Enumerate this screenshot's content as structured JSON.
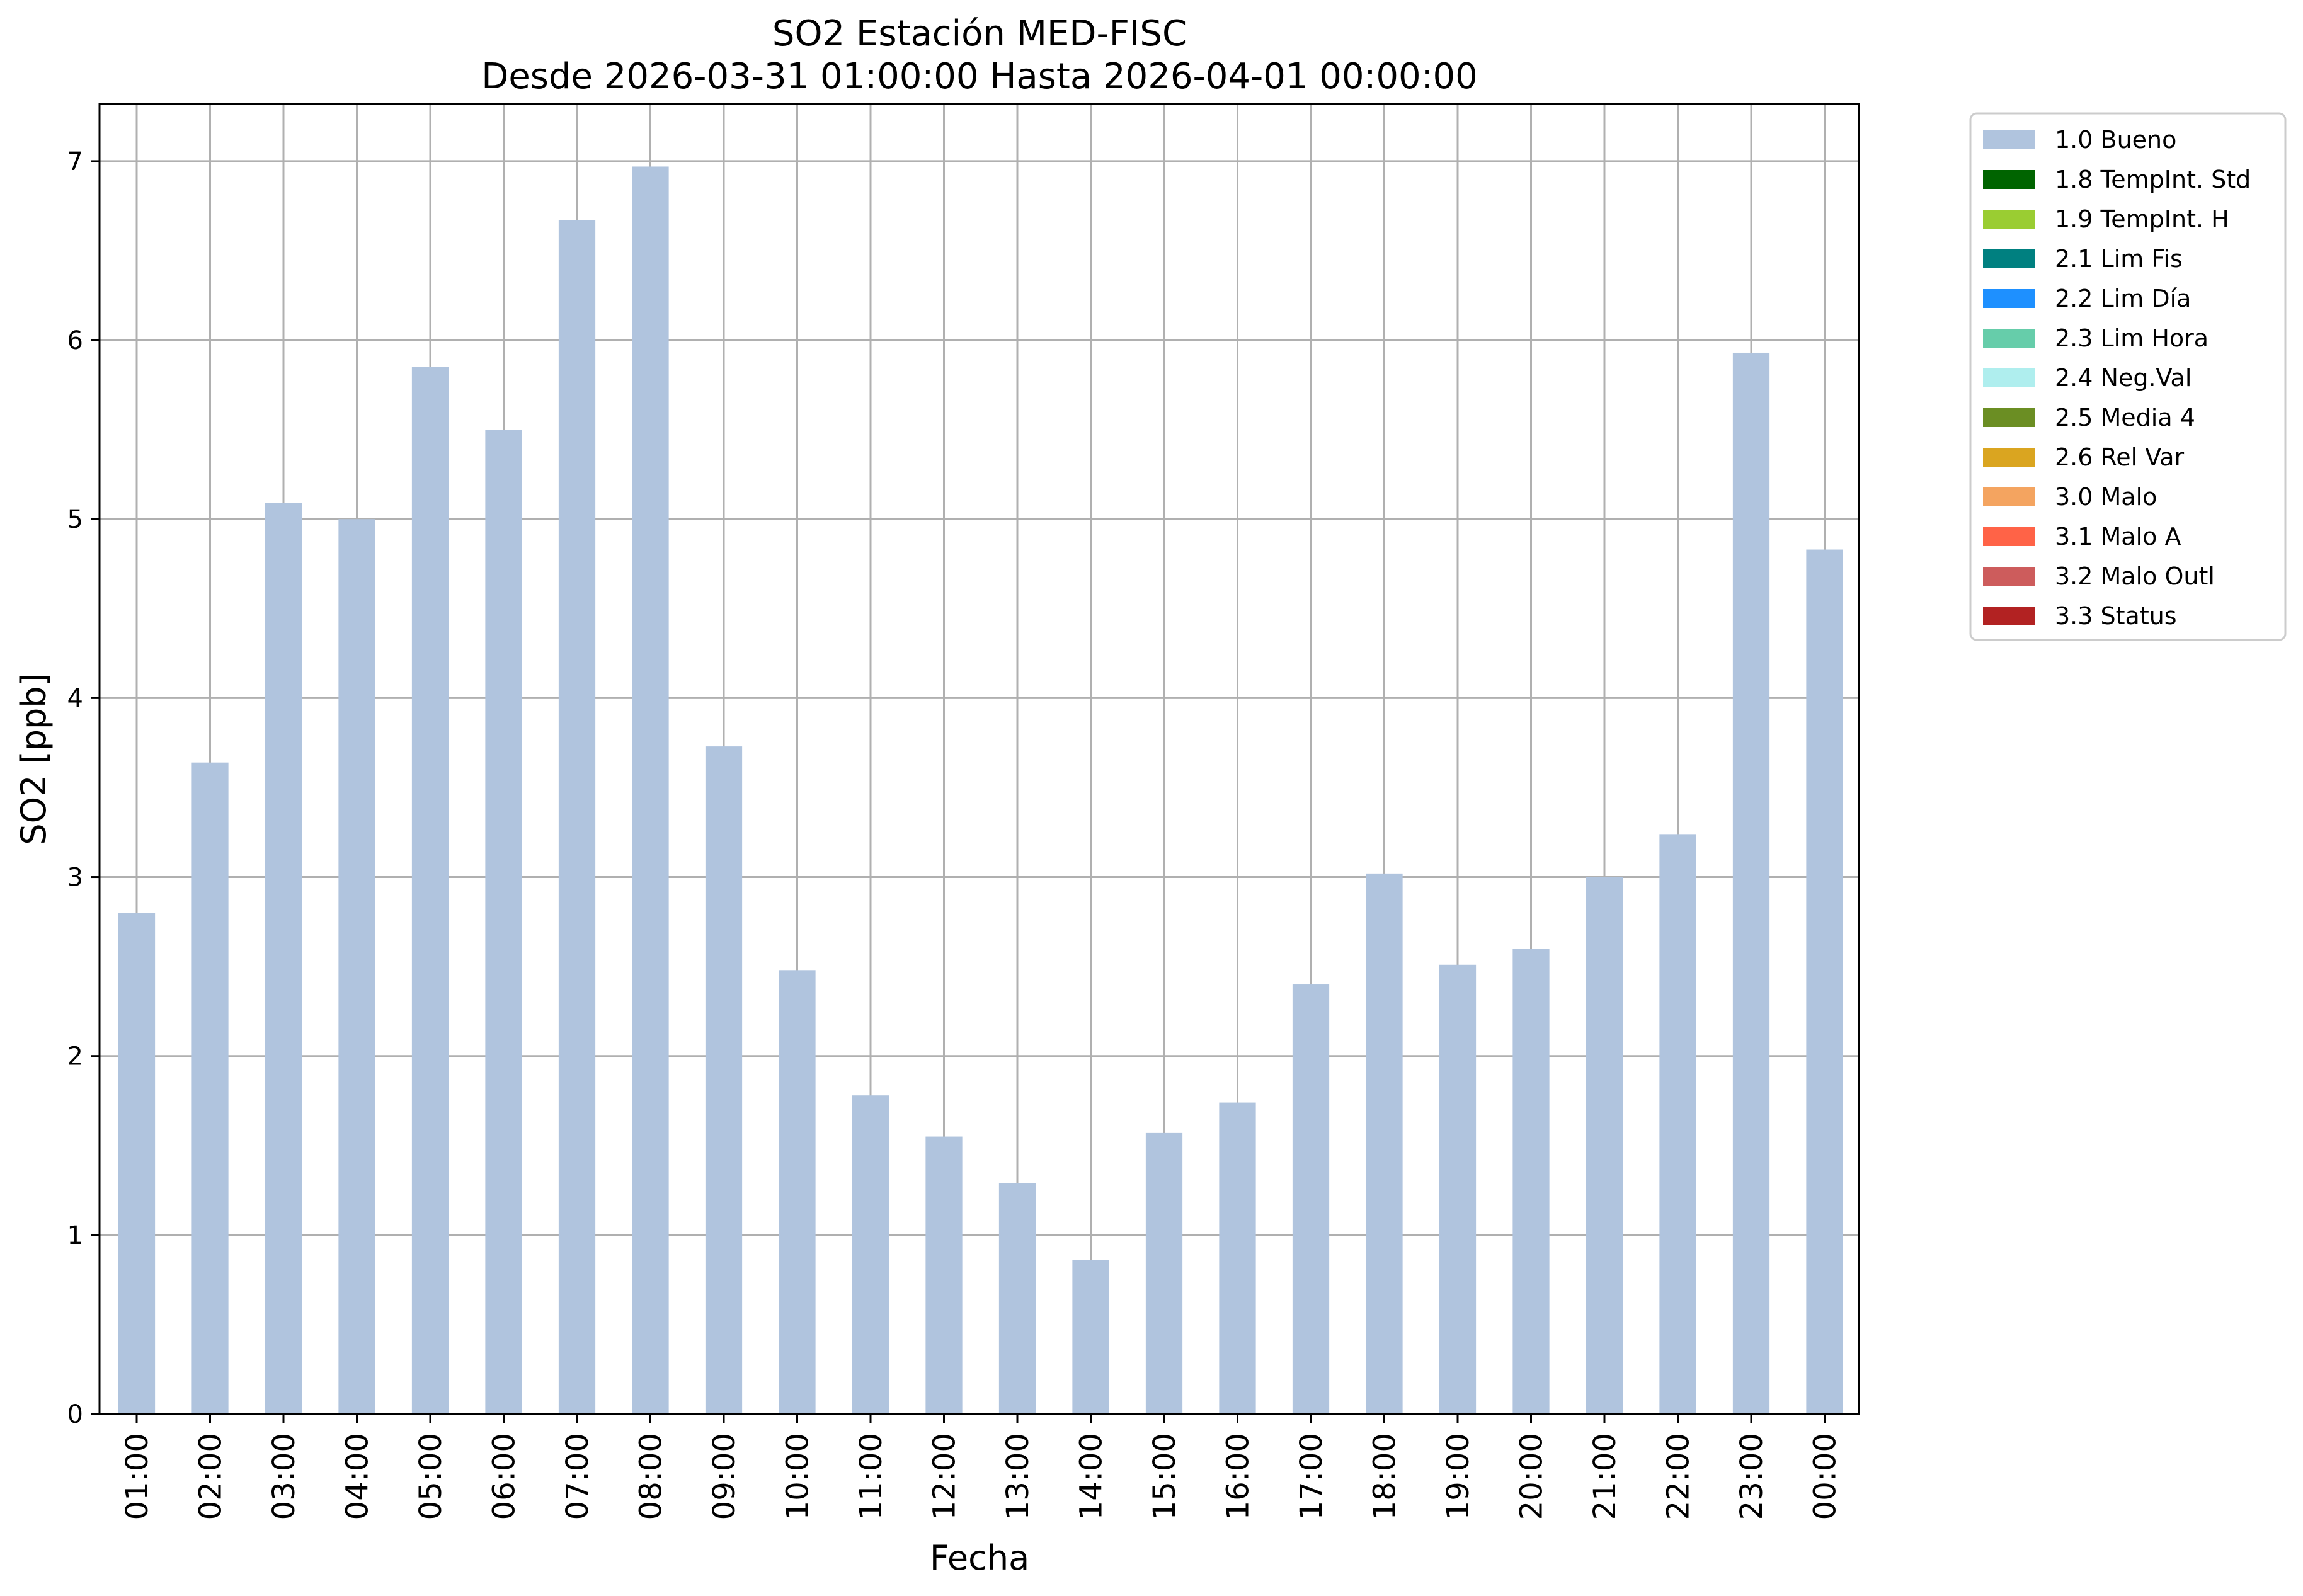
{
  "chart_data": {
    "type": "bar",
    "title": "SO2 Estación MED-FISC",
    "subtitle": "Desde 2026-03-31 01:00:00 Hasta 2026-04-01 00:00:00",
    "xlabel": "Fecha",
    "ylabel": "SO2 [ppb]",
    "ylim": [
      0,
      7.32
    ],
    "yticks": [
      "0",
      "1",
      "2",
      "3",
      "4",
      "5",
      "6",
      "7"
    ],
    "grid": true,
    "legend_position": "outside-top-right",
    "categories": [
      "01:00",
      "02:00",
      "03:00",
      "04:00",
      "05:00",
      "06:00",
      "07:00",
      "08:00",
      "09:00",
      "10:00",
      "11:00",
      "12:00",
      "13:00",
      "14:00",
      "15:00",
      "16:00",
      "17:00",
      "18:00",
      "19:00",
      "20:00",
      "21:00",
      "22:00",
      "23:00",
      "00:00"
    ],
    "series": [
      {
        "name": "1.0 Bueno",
        "color": "#b0c4de",
        "values": [
          2.8,
          3.64,
          5.09,
          5.0,
          5.85,
          5.5,
          6.67,
          6.97,
          3.73,
          2.48,
          1.78,
          1.55,
          1.29,
          0.86,
          1.57,
          1.74,
          2.4,
          3.02,
          2.51,
          2.6,
          3.0,
          3.24,
          5.93,
          4.83
        ]
      }
    ],
    "legend": [
      {
        "label": "1.0 Bueno",
        "color": "#b0c4de"
      },
      {
        "label": "1.8 TempInt. Std",
        "color": "#006400"
      },
      {
        "label": "1.9 TempInt. H",
        "color": "#9acd32"
      },
      {
        "label": "2.1 Lim Fis",
        "color": "#008080"
      },
      {
        "label": "2.2 Lim Día",
        "color": "#1e90ff"
      },
      {
        "label": "2.3 Lim Hora",
        "color": "#66cdaa"
      },
      {
        "label": "2.4 Neg.Val",
        "color": "#afeeee"
      },
      {
        "label": "2.5 Media 4",
        "color": "#6b8e23"
      },
      {
        "label": "2.6 Rel Var",
        "color": "#daa520"
      },
      {
        "label": "3.0 Malo",
        "color": "#f4a460"
      },
      {
        "label": "3.1 Malo A",
        "color": "#ff6347"
      },
      {
        "label": "3.2 Malo Outl",
        "color": "#cd5c5c"
      },
      {
        "label": "3.3 Status",
        "color": "#b22222"
      }
    ]
  }
}
